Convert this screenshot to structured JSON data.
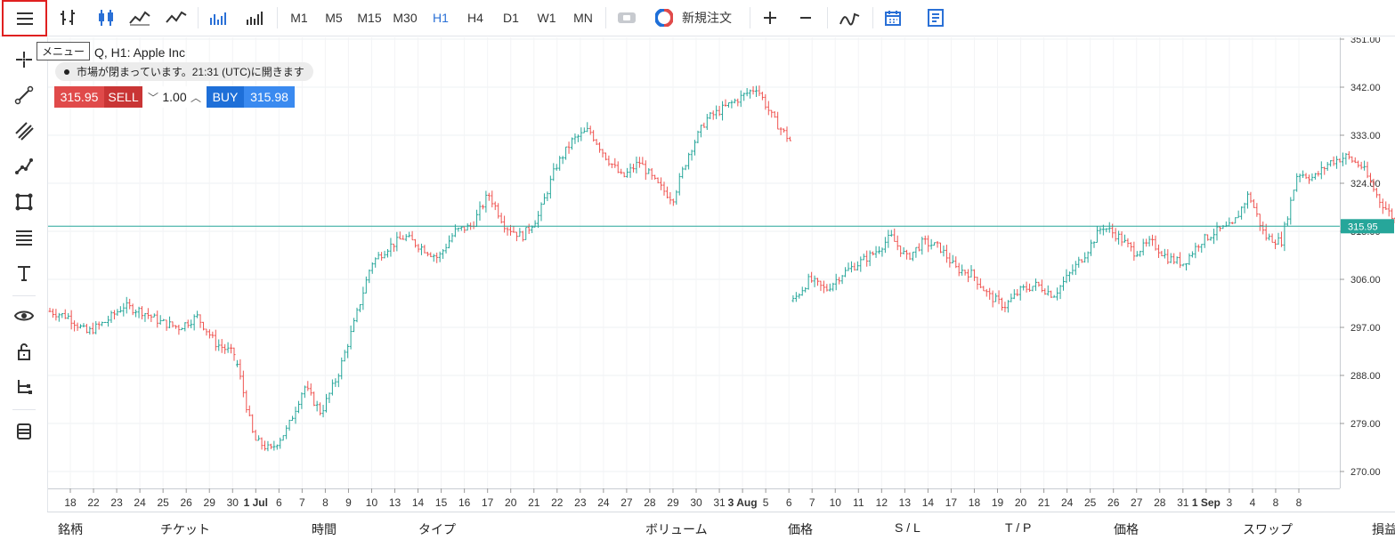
{
  "toolbar": {
    "timeframes": [
      "M1",
      "M5",
      "M15",
      "M30",
      "H1",
      "H4",
      "D1",
      "W1",
      "MN"
    ],
    "active_timeframe": "H1",
    "new_order_label": "新規注文"
  },
  "tooltip": {
    "menu": "メニュー"
  },
  "chart": {
    "title": "Q, H1: Apple Inc",
    "market_status": "市場が閉まっています。21:31 (UTC)に開きます",
    "sell_price": "315.95",
    "sell_label": "SELL",
    "volume": "1.00",
    "buy_label": "BUY",
    "buy_price": "315.98"
  },
  "footer": {
    "columns": [
      "銘柄",
      "チケット",
      "時間",
      "タイプ",
      "ボリューム",
      "価格",
      "S / L",
      "T / P",
      "価格",
      "スワップ",
      "損益"
    ]
  },
  "colors": {
    "bull": "#26a69a",
    "bear": "#ef5350",
    "accent": "#2a70d6",
    "sell": "#e04a4a",
    "buy": "#1e6fd8"
  },
  "chart_data": {
    "type": "candlestick",
    "symbol_title": "Q, H1: Apple Inc",
    "y_ticks": [
      "351.00",
      "342.00",
      "333.00",
      "324.00",
      "315.00",
      "306.00",
      "297.00",
      "288.00",
      "279.00",
      "270.00"
    ],
    "ylim": [
      268,
      351
    ],
    "current_price": 315.95,
    "current_price_label": "315.95",
    "x_ticks": [
      "18",
      "22",
      "23",
      "24",
      "25",
      "26",
      "29",
      "30",
      "1 Jul",
      "6",
      "7",
      "8",
      "9",
      "10",
      "13",
      "14",
      "15",
      "16",
      "17",
      "20",
      "21",
      "22",
      "23",
      "24",
      "27",
      "28",
      "29",
      "30",
      "31",
      "3 Aug",
      "5",
      "6",
      "7",
      "10",
      "11",
      "12",
      "13",
      "14",
      "17",
      "18",
      "19",
      "20",
      "21",
      "24",
      "25",
      "26",
      "27",
      "28",
      "31",
      "1 Sep",
      "3",
      "4",
      "8",
      "8"
    ],
    "segments": [
      {
        "start": 0,
        "end": 61,
        "prices": [
          300,
          299,
          296,
          298,
          301,
          300,
          298,
          297,
          299,
          294,
          292
        ]
      },
      {
        "start": 61,
        "end": 242,
        "prices": [
          290,
          276,
          274,
          278,
          286,
          281,
          288,
          298,
          309,
          312,
          314,
          312,
          310,
          315,
          316,
          322,
          316,
          314,
          318,
          327,
          332,
          334,
          329,
          325,
          328,
          324,
          321,
          330,
          336,
          338,
          340,
          342,
          336,
          332
        ]
      },
      {
        "start": 242,
        "end": 440,
        "prices": [
          302,
          306,
          304,
          307,
          309,
          311,
          314,
          310,
          313,
          312,
          308,
          307,
          303,
          301,
          304,
          305,
          303,
          307,
          311,
          316,
          314,
          311,
          313,
          310,
          309,
          313,
          315,
          316,
          322,
          314,
          313,
          326,
          325,
          328,
          329,
          327,
          321,
          317
        ]
      }
    ]
  }
}
